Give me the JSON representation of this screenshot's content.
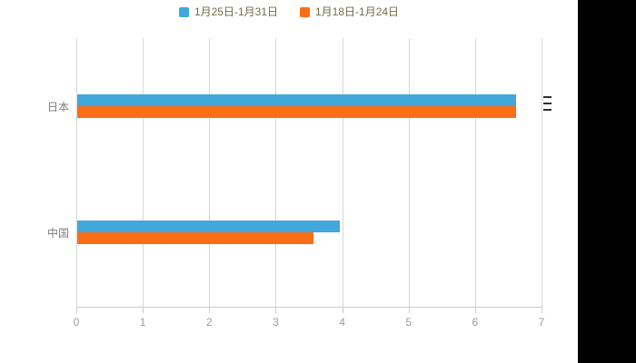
{
  "chart_data": {
    "type": "bar",
    "orientation": "horizontal",
    "title": "",
    "categories": [
      "日本",
      "中国"
    ],
    "series": [
      {
        "name": "1月25日-1月31日",
        "color": "#41a7dc",
        "values": [
          6.6,
          3.95
        ]
      },
      {
        "name": "1月18日-1月24日",
        "color": "#fc6e16",
        "values": [
          6.6,
          3.55
        ]
      }
    ],
    "xlim": [
      0,
      7
    ],
    "xticks": [
      "0",
      "1",
      "2",
      "3",
      "4",
      "5",
      "6",
      "7"
    ],
    "grid": true,
    "legend_position": "top-center"
  },
  "colors": {
    "grid": "#d7d7d7",
    "axis": "#cccccc",
    "tick_label": "#9b9b9b",
    "category_label": "#7d7d7d",
    "legend_text": "#6e6e46",
    "background": "#ffffff",
    "letterbox": "#000000",
    "dash_marks": "#2e2e2e"
  }
}
